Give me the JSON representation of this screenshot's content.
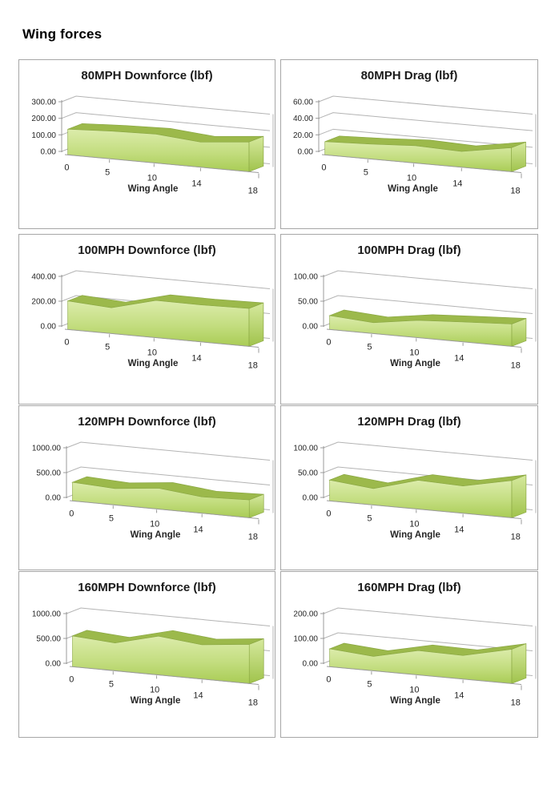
{
  "page": {
    "heading": "Wing forces"
  },
  "style": {
    "area_top_color": "#dcecab",
    "area_mid_color": "#c3dd7f",
    "area_bottom_color": "#a9cc55",
    "ridge_color": "#9cb94b",
    "cap_top_color": "#d6e99e",
    "cap_bottom_color": "#a0c34c",
    "edge_stroke_color": "#8aa743",
    "grid_color": "#b3b3b3",
    "axis_color": "#9b9b9b",
    "text_color": "#262626",
    "border_color": "#a6a6a6"
  },
  "chart_data": [
    {
      "type": "area",
      "title": "80MPH Downforce (lbf)",
      "xlabel": "Wing Angle",
      "categories": [
        0,
        5,
        10,
        14,
        18
      ],
      "x_tick_labels": [
        "0",
        "5",
        "10",
        "14",
        "18"
      ],
      "values": [
        155,
        168,
        175,
        152,
        180
      ],
      "ylim": [
        0,
        300
      ],
      "y_ticks": [
        0,
        100,
        200,
        300
      ],
      "y_tick_labels": [
        "0.00",
        "100.00",
        "200.00",
        "300.00"
      ],
      "grid": true,
      "legend": false
    },
    {
      "type": "area",
      "title": "80MPH Drag (lbf)",
      "xlabel": "Wing Angle",
      "categories": [
        0,
        5,
        10,
        14,
        18
      ],
      "x_tick_labels": [
        "0",
        "5",
        "10",
        "14",
        "18"
      ],
      "values": [
        16,
        18,
        21,
        19,
        29
      ],
      "ylim": [
        0,
        60
      ],
      "y_ticks": [
        0,
        20,
        40,
        60
      ],
      "y_tick_labels": [
        "0.00",
        "20.00",
        "40.00",
        "60.00"
      ],
      "grid": true,
      "legend": false
    },
    {
      "type": "area",
      "title": "100MPH Downforce (lbf)",
      "xlabel": "Wing Angle",
      "categories": [
        0,
        5,
        10,
        14,
        18
      ],
      "x_tick_labels": [
        "0",
        "5",
        "10",
        "14",
        "18"
      ],
      "values": [
        230,
        208,
        300,
        298,
        305
      ],
      "ylim": [
        0,
        400
      ],
      "y_ticks": [
        0,
        200,
        400
      ],
      "y_tick_labels": [
        "0.00",
        "200.00",
        "400.00"
      ],
      "grid": true,
      "legend": false
    },
    {
      "type": "area",
      "title": "100MPH Drag (lbf)",
      "xlabel": "Wing Angle",
      "categories": [
        0,
        5,
        10,
        14,
        18
      ],
      "x_tick_labels": [
        "0",
        "5",
        "10",
        "14",
        "18"
      ],
      "values": [
        28,
        22,
        35,
        40,
        45
      ],
      "ylim": [
        0,
        100
      ],
      "y_ticks": [
        0,
        50,
        100
      ],
      "y_tick_labels": [
        "0.00",
        "50.00",
        "100.00"
      ],
      "grid": true,
      "legend": false
    },
    {
      "type": "area",
      "title": "120MPH Downforce (lbf)",
      "xlabel": "Wing Angle",
      "categories": [
        0,
        5,
        10,
        14,
        18
      ],
      "x_tick_labels": [
        "0",
        "5",
        "10",
        "14",
        "18"
      ],
      "values": [
        375,
        330,
        420,
        330,
        360
      ],
      "ylim": [
        0,
        1000
      ],
      "y_ticks": [
        0,
        500,
        1000
      ],
      "y_tick_labels": [
        "0.00",
        "500.00",
        "1000.00"
      ],
      "grid": true,
      "legend": false
    },
    {
      "type": "area",
      "title": "120MPH Drag (lbf)",
      "xlabel": "Wing Angle",
      "categories": [
        0,
        5,
        10,
        14,
        18
      ],
      "x_tick_labels": [
        "0",
        "5",
        "10",
        "14",
        "18"
      ],
      "values": [
        42,
        33,
        58,
        55,
        75
      ],
      "ylim": [
        0,
        100
      ],
      "y_ticks": [
        0,
        50,
        100
      ],
      "y_tick_labels": [
        "0.00",
        "50.00",
        "100.00"
      ],
      "grid": true,
      "legend": false
    },
    {
      "type": "area",
      "title": "160MPH Downforce (lbf)",
      "xlabel": "Wing Angle",
      "categories": [
        0,
        5,
        10,
        14,
        18
      ],
      "x_tick_labels": [
        "0",
        "5",
        "10",
        "14",
        "18"
      ],
      "values": [
        620,
        560,
        780,
        690,
        790
      ],
      "ylim": [
        0,
        1000
      ],
      "y_ticks": [
        0,
        500,
        1000
      ],
      "y_tick_labels": [
        "0.00",
        "500.00",
        "1000.00"
      ],
      "grid": true,
      "legend": false
    },
    {
      "type": "area",
      "title": "160MPH Drag (lbf)",
      "xlabel": "Wing Angle",
      "categories": [
        0,
        5,
        10,
        14,
        18
      ],
      "x_tick_labels": [
        "0",
        "5",
        "10",
        "14",
        "18"
      ],
      "values": [
        72,
        58,
        98,
        95,
        138
      ],
      "ylim": [
        0,
        200
      ],
      "y_ticks": [
        0,
        100,
        200
      ],
      "y_tick_labels": [
        "0.00",
        "100.00",
        "200.00"
      ],
      "grid": true,
      "legend": false
    }
  ]
}
